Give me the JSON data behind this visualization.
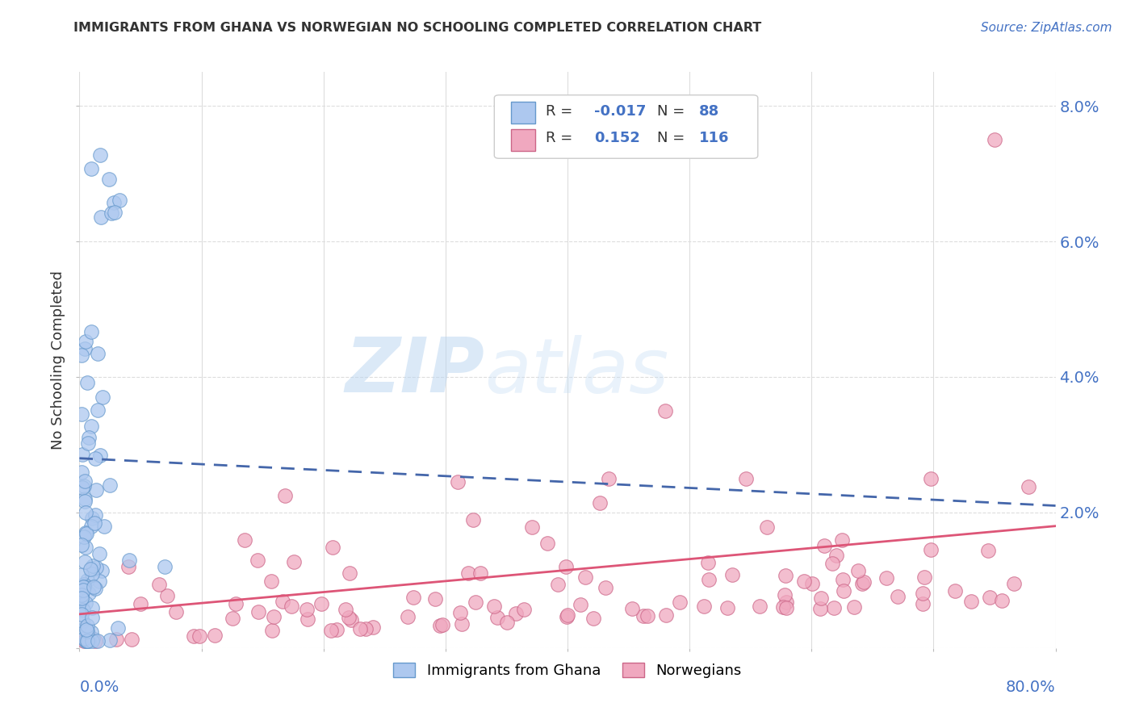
{
  "title": "IMMIGRANTS FROM GHANA VS NORWEGIAN NO SCHOOLING COMPLETED CORRELATION CHART",
  "source": "Source: ZipAtlas.com",
  "ylabel": "No Schooling Completed",
  "xlim": [
    0,
    0.8
  ],
  "ylim": [
    0,
    0.085
  ],
  "color_ghana": "#adc8ef",
  "color_ghana_edge": "#6699cc",
  "color_norway": "#f0a8bf",
  "color_norway_edge": "#cc6688",
  "color_ghana_line": "#4466aa",
  "color_norway_line": "#dd5577",
  "watermark_zip": "ZIP",
  "watermark_atlas": "atlas",
  "ghana_R": -0.017,
  "ghana_N": 88,
  "norway_R": 0.152,
  "norway_N": 116,
  "ghana_line_x0": 0.0,
  "ghana_line_y0": 0.028,
  "ghana_line_x1": 0.8,
  "ghana_line_y1": 0.021,
  "norway_line_x0": 0.0,
  "norway_line_y0": 0.005,
  "norway_line_x1": 0.8,
  "norway_line_y1": 0.018,
  "background_color": "#ffffff",
  "grid_color": "#dddddd",
  "ytick_color": "#4472c4",
  "axis_label_color": "#4472c4"
}
